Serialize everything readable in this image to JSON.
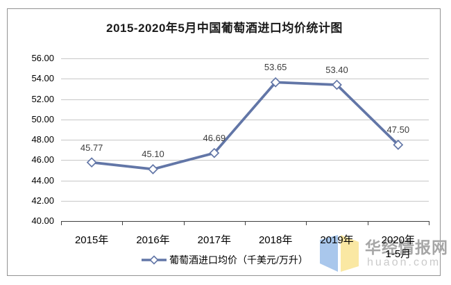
{
  "title": "2015-2020年5月中国葡萄酒进口均价统计图",
  "chart_data": {
    "type": "line",
    "title": "2015-2020年5月中国葡萄酒进口均价统计图",
    "categories": [
      "2015年",
      "2016年",
      "2017年",
      "2018年",
      "2019年",
      "2020年\n1-5月"
    ],
    "series": [
      {
        "name": "葡萄酒进口均价（千美元/万升）",
        "values": [
          45.77,
          45.1,
          46.69,
          53.65,
          53.4,
          47.5
        ]
      }
    ],
    "data_labels": [
      "45.77",
      "45.10",
      "46.69",
      "53.65",
      "53.40",
      "47.50"
    ],
    "ylim": [
      40,
      56
    ],
    "ytick_step": 2,
    "yticks": [
      "56.00",
      "54.00",
      "52.00",
      "50.00",
      "48.00",
      "46.00",
      "44.00",
      "42.00",
      "40.00"
    ],
    "grid": "horizontal",
    "legend_position": "bottom",
    "line_color": "#6276a7",
    "marker": "open-diamond",
    "marker_fill": "#ffffff"
  },
  "legend": {
    "label": "葡萄酒进口均价（千美元/万升）"
  },
  "watermark": {
    "name": "华经情报网",
    "domain": "huaon.com",
    "logo_blue": "#a9c7ec",
    "logo_yellow": "#fae8a3"
  },
  "colors": {
    "gridline": "#c7c7c7",
    "axis": "#3f3f3f",
    "frame_border": "#929292",
    "background": "#ffffff"
  }
}
